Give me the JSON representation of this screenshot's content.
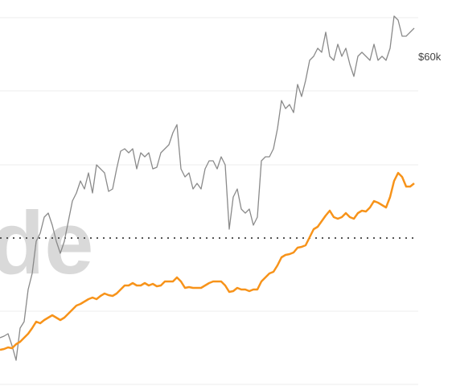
{
  "chart_data": {
    "type": "line",
    "watermark": "de",
    "ylim": [
      23300,
      71300
    ],
    "yticks": [
      {
        "value": 60000,
        "label": "$60k"
      }
    ],
    "series": [
      {
        "name": null,
        "color": "#8a8a8a",
        "values": [
          29300,
          29500,
          29800,
          28300,
          26500,
          30500,
          31300,
          35300,
          37300,
          41300,
          42300,
          44300,
          44800,
          43300,
          41300,
          39800,
          41300,
          43800,
          46300,
          47300,
          48800,
          47800,
          49800,
          47300,
          50800,
          50300,
          49800,
          47500,
          47800,
          50300,
          52500,
          52800,
          52300,
          52800,
          50300,
          52300,
          51800,
          52300,
          50300,
          50500,
          52300,
          52800,
          53300,
          54800,
          55800,
          50300,
          49300,
          49800,
          47800,
          48500,
          47800,
          50300,
          51300,
          51300,
          50300,
          51800,
          50800,
          42800,
          46800,
          47800,
          45300,
          44800,
          45300,
          43300,
          44300,
          51300,
          51800,
          51800,
          52800,
          55300,
          58800,
          57800,
          58300,
          57300,
          60800,
          59300,
          61300,
          63800,
          64300,
          65300,
          64800,
          67300,
          64300,
          63800,
          65800,
          64300,
          65300,
          63300,
          61800,
          64300,
          64800,
          64300,
          63800,
          65800,
          63800,
          64300,
          63800,
          65300,
          69300,
          68800,
          66800,
          66800,
          67300,
          67800
        ]
      },
      {
        "name": null,
        "color": "#f7931a",
        "values": [
          27800,
          27900,
          28100,
          28000,
          28500,
          28800,
          29300,
          29800,
          30500,
          31300,
          31100,
          31500,
          31800,
          32100,
          31800,
          31500,
          31800,
          32300,
          32800,
          33300,
          33500,
          33800,
          34100,
          34300,
          34100,
          34500,
          34800,
          34600,
          34500,
          34800,
          35300,
          35800,
          35800,
          36100,
          35800,
          35800,
          36100,
          35800,
          36000,
          35700,
          35800,
          36300,
          36300,
          36300,
          36800,
          36300,
          35500,
          35600,
          35500,
          35500,
          35500,
          35800,
          36100,
          36300,
          36300,
          36300,
          35800,
          35000,
          35100,
          35500,
          35300,
          35300,
          35100,
          35300,
          35300,
          36300,
          36800,
          37300,
          37500,
          38300,
          39300,
          39600,
          39700,
          39900,
          40500,
          40600,
          40800,
          41800,
          42800,
          43100,
          43800,
          44500,
          45100,
          44300,
          44100,
          44300,
          44800,
          44300,
          44100,
          44800,
          45100,
          45000,
          45500,
          46300,
          46100,
          45800,
          45500,
          46800,
          48800,
          49800,
          49300,
          48100,
          48100,
          48500
        ]
      }
    ]
  }
}
